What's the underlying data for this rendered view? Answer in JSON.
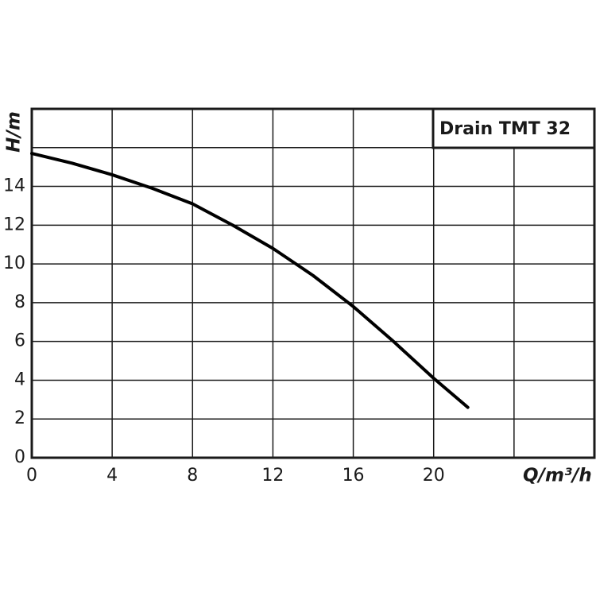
{
  "chart_data": {
    "type": "line",
    "title": "Drain TMT 32",
    "x_label": "Q/m³/h",
    "y_label": "H/m",
    "series": [
      {
        "name": "Drain TMT 32",
        "color": "#000000",
        "x": [
          0,
          2,
          4,
          6,
          8,
          10,
          12,
          14,
          16,
          18,
          20,
          21.7
        ],
        "values": [
          15.7,
          15.2,
          14.6,
          13.9,
          13.1,
          12.0,
          10.8,
          9.4,
          7.8,
          6.0,
          4.1,
          2.6
        ]
      }
    ],
    "xlim": [
      0,
      28
    ],
    "xticks": [
      0,
      4,
      8,
      12,
      16,
      20,
      {
        "value": 24,
        "label": null
      }
    ],
    "ylim": [
      0,
      18
    ],
    "yticks": [
      0,
      2,
      4,
      6,
      8,
      10,
      12,
      14,
      {
        "value": 16,
        "label": null
      }
    ],
    "grid": true
  }
}
